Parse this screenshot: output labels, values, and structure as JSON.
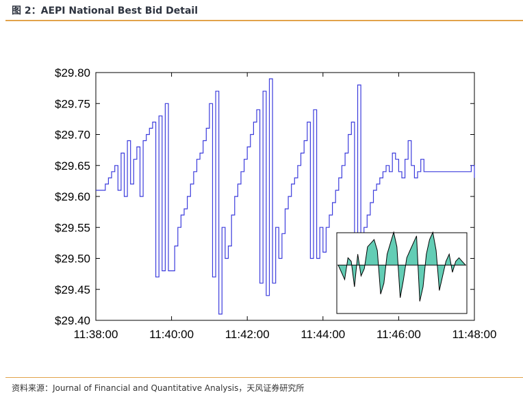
{
  "figure": {
    "title": "图 2：AEPI National Best Bid Detail",
    "source": "资料来源：Journal of Financial and Quantitative Analysis，天风证券研究所"
  },
  "chart_data": {
    "type": "line",
    "x": [
      "11:38:00",
      "11:38:05",
      "11:38:10",
      "11:38:15",
      "11:38:20",
      "11:38:25",
      "11:38:30",
      "11:38:35",
      "11:38:40",
      "11:38:45",
      "11:38:50",
      "11:38:55",
      "11:39:00",
      "11:39:05",
      "11:39:10",
      "11:39:15",
      "11:39:20",
      "11:39:25",
      "11:39:30",
      "11:39:35",
      "11:39:40",
      "11:39:45",
      "11:39:50",
      "11:39:55",
      "11:40:00",
      "11:40:05",
      "11:40:10",
      "11:40:15",
      "11:40:20",
      "11:40:25",
      "11:40:30",
      "11:40:35",
      "11:40:40",
      "11:40:45",
      "11:40:50",
      "11:40:55",
      "11:41:00",
      "11:41:05",
      "11:41:10",
      "11:41:15",
      "11:41:20",
      "11:41:25",
      "11:41:30",
      "11:41:35",
      "11:41:40",
      "11:41:45",
      "11:41:50",
      "11:41:55",
      "11:42:00",
      "11:42:05",
      "11:42:10",
      "11:42:15",
      "11:42:20",
      "11:42:25",
      "11:42:30",
      "11:42:35",
      "11:42:40",
      "11:42:45",
      "11:42:50",
      "11:42:55",
      "11:43:00",
      "11:43:05",
      "11:43:10",
      "11:43:15",
      "11:43:20",
      "11:43:25",
      "11:43:30",
      "11:43:35",
      "11:43:40",
      "11:43:45",
      "11:43:50",
      "11:43:55",
      "11:44:00",
      "11:44:05",
      "11:44:10",
      "11:44:15",
      "11:44:20",
      "11:44:25",
      "11:44:30",
      "11:44:35",
      "11:44:40",
      "11:44:45",
      "11:44:50",
      "11:44:55",
      "11:45:00",
      "11:45:05",
      "11:45:10",
      "11:45:15",
      "11:45:20",
      "11:45:25",
      "11:45:30",
      "11:45:35",
      "11:45:40",
      "11:45:45",
      "11:45:50",
      "11:45:55",
      "11:46:00",
      "11:46:05",
      "11:46:10",
      "11:46:15",
      "11:46:20",
      "11:46:25",
      "11:46:30",
      "11:46:35",
      "11:46:40",
      "11:46:45",
      "11:46:50",
      "11:46:55",
      "11:47:00",
      "11:47:05",
      "11:47:10",
      "11:47:15",
      "11:47:20",
      "11:47:25",
      "11:47:30",
      "11:47:35",
      "11:47:40",
      "11:47:45",
      "11:47:50",
      "11:47:55",
      "11:48:00"
    ],
    "series": [
      {
        "values": [
          29.61,
          29.61,
          29.61,
          29.62,
          29.63,
          29.64,
          29.65,
          29.61,
          29.67,
          29.6,
          29.69,
          29.62,
          29.66,
          29.68,
          29.6,
          29.69,
          29.7,
          29.71,
          29.72,
          29.47,
          29.73,
          29.48,
          29.75,
          29.48,
          29.48,
          29.52,
          29.55,
          29.57,
          29.58,
          29.6,
          29.62,
          29.64,
          29.66,
          29.67,
          29.69,
          29.71,
          29.75,
          29.47,
          29.77,
          29.41,
          29.55,
          29.5,
          29.52,
          29.57,
          29.6,
          29.62,
          29.64,
          29.66,
          29.68,
          29.7,
          29.72,
          29.74,
          29.46,
          29.77,
          29.44,
          29.79,
          29.46,
          29.55,
          29.5,
          29.54,
          29.58,
          29.6,
          29.62,
          29.63,
          29.65,
          29.67,
          29.69,
          29.72,
          29.5,
          29.74,
          29.5,
          29.55,
          29.51,
          29.55,
          29.57,
          29.59,
          29.61,
          29.63,
          29.65,
          29.67,
          29.7,
          29.72,
          29.5,
          29.78,
          29.52,
          29.55,
          29.57,
          29.59,
          29.61,
          29.62,
          29.63,
          29.64,
          29.65,
          29.64,
          29.67,
          29.66,
          29.64,
          29.63,
          29.66,
          29.69,
          29.65,
          29.63,
          29.64,
          29.66,
          29.64,
          29.64,
          29.64,
          29.64,
          29.64,
          29.64,
          29.64,
          29.64,
          29.64,
          29.64,
          29.64,
          29.64,
          29.64,
          29.64,
          29.64,
          29.65,
          29.63
        ]
      }
    ],
    "ylim": [
      29.4,
      29.8
    ],
    "y_ticks": [
      "$29.40",
      "$29.45",
      "$29.50",
      "$29.55",
      "$29.60",
      "$29.65",
      "$29.70",
      "$29.75",
      "$29.80"
    ],
    "x_ticks": [
      "11:38:00",
      "11:40:00",
      "11:42:00",
      "11:44:00",
      "11:46:00",
      "11:48:00"
    ],
    "grid": false,
    "legend": "none",
    "line_color": "#3b3bdc",
    "inset": {
      "type": "area",
      "series_color": "#000000",
      "fill_color": "#48c4a8",
      "baseline": 0,
      "values": [
        0,
        -0.2,
        -0.4,
        0.2,
        0.1,
        -0.6,
        0.3,
        -0.3,
        -0.1,
        0.5,
        0.6,
        0.7,
        0.4,
        -0.8,
        -0.5,
        0.3,
        0.6,
        0.9,
        0.5,
        -0.9,
        -0.4,
        0.2,
        0.4,
        0.6,
        0.8,
        -1.0,
        -0.6,
        0.3,
        0.7,
        0.9,
        0.4,
        -0.7,
        -0.3,
        0.1,
        0.3,
        -0.2,
        0.1,
        0.2,
        0.1,
        0.0
      ]
    }
  }
}
